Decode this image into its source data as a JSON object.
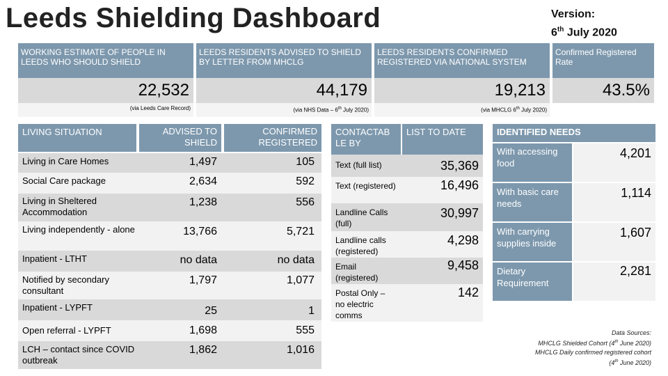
{
  "title": "Leeds Shielding Dashboard",
  "version": {
    "label": "Version:",
    "day": "6",
    "suffix": "th",
    "rest": "July 2020"
  },
  "summary": [
    {
      "header": "WORKING ESTIMATE OF PEOPLE IN LEEDS WHO SHOULD SHIELD",
      "value": "22,532",
      "source": "(via Leeds Care Record)"
    },
    {
      "header": "LEEDS RESIDENTS ADVISED TO SHIELD BY LETTER FROM MHCLG",
      "value": "44,179",
      "source_pre": "(via NHS Data – 6",
      "source_sup": "th",
      "source_post": " July 2020)"
    },
    {
      "header": "LEEDS RESIDENTS CONFIRMED REGISTERED VIA NATIONAL SYSTEM",
      "value": "19,213",
      "source_pre": "(via MHCLG 6",
      "source_sup": "th",
      "source_post": " July 2020)"
    },
    {
      "header": "Confirmed Registered Rate",
      "value": "43.5%"
    }
  ],
  "living": {
    "headers": [
      "LIVING SITUATION",
      "ADVISED TO SHIELD",
      "CONFIRMED REGISTERED"
    ],
    "rows": [
      {
        "label": "Living in Care Homes",
        "advised": "1,497",
        "confirmed": "105"
      },
      {
        "label": "Social Care package",
        "advised": "2,634",
        "confirmed": "592"
      },
      {
        "label": "Living in Sheltered Accommodation",
        "advised": "1,238",
        "confirmed": "556"
      },
      {
        "label": "Living independently - alone",
        "advised": "13,766",
        "confirmed": "5,721"
      },
      {
        "label": "Inpatient - LTHT",
        "advised": "no data",
        "confirmed": "no data"
      },
      {
        "label": "Notified by secondary consultant",
        "advised": "1,797",
        "confirmed": "1,077"
      },
      {
        "label": "Inpatient - LYPFT",
        "advised": "25",
        "confirmed": "1"
      },
      {
        "label": "Open referral - LYPFT",
        "advised": "1,698",
        "confirmed": "555"
      },
      {
        "label": "LCH – contact since COVID outbreak",
        "advised": "1,862",
        "confirmed": "1,016"
      }
    ]
  },
  "contact": {
    "headers": [
      "CONTACTAB LE BY",
      "LIST TO DATE"
    ],
    "rows": [
      {
        "label": "Text (full list)",
        "value": "35,369"
      },
      {
        "label": "Text (registered)",
        "value": "16,496"
      },
      {
        "label": "Landline Calls (full)",
        "value": "30,997"
      },
      {
        "label": "Landline calls (registered)",
        "value": "4,298"
      },
      {
        "label": "Email (registered)",
        "value": "9,458"
      },
      {
        "label": "Postal Only – no electric comms",
        "value": "142"
      }
    ]
  },
  "needs": {
    "header": "IDENTIFIED NEEDS",
    "rows": [
      {
        "label": "With accessing food",
        "value": "4,201"
      },
      {
        "label": "With basic care needs",
        "value": "1,114"
      },
      {
        "label": "With carrying supplies inside",
        "value": "1,607"
      },
      {
        "label": "Dietary Requirement",
        "value": "2,281"
      }
    ]
  },
  "footnote": {
    "title": "Data Sources:",
    "line1_pre": "MHCLG Shielded Cohort (4",
    "line1_sup": "th",
    "line1_post": " June 2020)",
    "line2": "MHCLG Daily confirmed registered cohort",
    "line3_pre": "(4",
    "line3_sup": "th",
    "line3_post": " June 2020)"
  }
}
